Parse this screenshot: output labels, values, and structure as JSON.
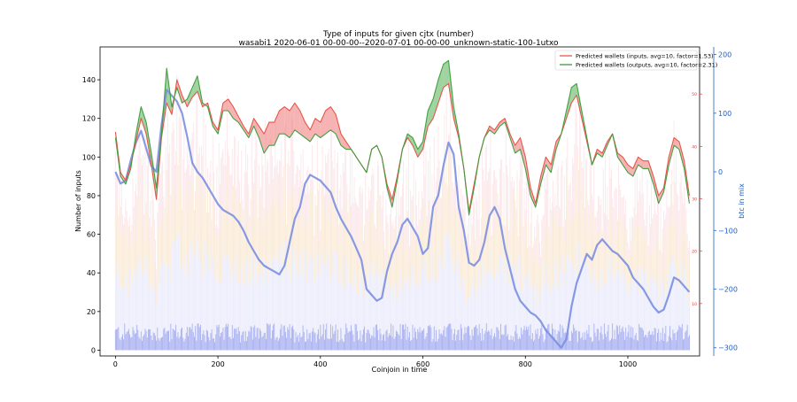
{
  "chart_data": {
    "type": "line",
    "title": "Type of inputs for given cjtx (number)",
    "subtitle": "wasabi1 2020-06-01 00-00-00--2020-07-01 00-00-00_unknown-static-100-1utxo",
    "xlabel": "Coinjoin in time",
    "ylabel": "Number of inputs",
    "y2label": "btc in mix",
    "xlim": [
      -30,
      1140
    ],
    "ylim": [
      -3,
      157
    ],
    "y2lim": [
      -314,
      213
    ],
    "y3lim": [
      0,
      59
    ],
    "x_ticks": [
      0,
      200,
      400,
      600,
      800,
      1000
    ],
    "y_ticks": [
      0,
      20,
      40,
      60,
      80,
      100,
      120,
      140
    ],
    "y2_ticks": [
      -300,
      -200,
      -100,
      0,
      100,
      200
    ],
    "y3_ticks": [
      10,
      20,
      30,
      40,
      50
    ],
    "legend_position": "top-right",
    "grid": false,
    "colors": {
      "inputs": "#e8564a",
      "outputs": "#3c9c3c",
      "btc": "#7b8fe0",
      "fill_outputs": "#5fb55f",
      "fill_inputs": "#f08080",
      "axis_right": "#1f5fbf",
      "axis_red": "#d94040",
      "bars_blue": "#6f7be8",
      "bars_orange": "#f2c48a",
      "bars_pink": "#f0a0b0",
      "bars_lavender": "#d8dcf8"
    },
    "series": [
      {
        "name": "Predicted wallets (inputs, avg=10, factor=1.53)",
        "axis": "left",
        "x": [
          0,
          10,
          20,
          30,
          40,
          50,
          60,
          70,
          80,
          90,
          100,
          110,
          120,
          130,
          140,
          150,
          160,
          170,
          180,
          190,
          200,
          210,
          220,
          230,
          240,
          250,
          260,
          270,
          280,
          290,
          300,
          310,
          320,
          330,
          340,
          350,
          360,
          370,
          380,
          390,
          400,
          410,
          420,
          430,
          440,
          450,
          460,
          470,
          480,
          490,
          500,
          510,
          520,
          530,
          540,
          550,
          560,
          570,
          580,
          590,
          600,
          610,
          620,
          630,
          640,
          650,
          660,
          670,
          680,
          690,
          700,
          710,
          720,
          730,
          740,
          750,
          760,
          770,
          780,
          790,
          800,
          810,
          820,
          830,
          840,
          850,
          860,
          870,
          880,
          890,
          900,
          910,
          920,
          930,
          940,
          950,
          960,
          970,
          980,
          990,
          1000,
          1010,
          1020,
          1030,
          1040,
          1050,
          1060,
          1070,
          1080,
          1090,
          1100,
          1110,
          1120
        ],
        "values": [
          113,
          92,
          88,
          96,
          108,
          120,
          112,
          96,
          78,
          110,
          128,
          122,
          140,
          132,
          126,
          131,
          134,
          126,
          128,
          118,
          114,
          128,
          130,
          126,
          121,
          116,
          112,
          120,
          116,
          112,
          118,
          118,
          124,
          126,
          124,
          128,
          124,
          118,
          114,
          120,
          118,
          124,
          126,
          122,
          112,
          108,
          104,
          100,
          96,
          92,
          104,
          106,
          100,
          86,
          78,
          90,
          104,
          110,
          106,
          100,
          104,
          116,
          120,
          128,
          136,
          138,
          120,
          110,
          94,
          72,
          86,
          100,
          110,
          116,
          114,
          118,
          120,
          112,
          106,
          110,
          100,
          84,
          76,
          90,
          100,
          96,
          108,
          112,
          120,
          128,
          132,
          120,
          108,
          96,
          104,
          102,
          108,
          112,
          102,
          100,
          96,
          94,
          100,
          98,
          98,
          90,
          80,
          84,
          100,
          110,
          108,
          98,
          80
        ]
      },
      {
        "name": "Predicted wallets (outputs, avg=10, factor=2.31)",
        "axis": "left",
        "x": [
          0,
          10,
          20,
          30,
          40,
          50,
          60,
          70,
          80,
          90,
          100,
          110,
          120,
          130,
          140,
          150,
          160,
          170,
          180,
          190,
          200,
          210,
          220,
          230,
          240,
          250,
          260,
          270,
          280,
          290,
          300,
          310,
          320,
          330,
          340,
          350,
          360,
          370,
          380,
          390,
          400,
          410,
          420,
          430,
          440,
          450,
          460,
          470,
          480,
          490,
          500,
          510,
          520,
          530,
          540,
          550,
          560,
          570,
          580,
          590,
          600,
          610,
          620,
          630,
          640,
          650,
          660,
          670,
          680,
          690,
          700,
          710,
          720,
          730,
          740,
          750,
          760,
          770,
          780,
          790,
          800,
          810,
          820,
          830,
          840,
          850,
          860,
          870,
          880,
          890,
          900,
          910,
          920,
          930,
          940,
          950,
          960,
          970,
          980,
          990,
          1000,
          1010,
          1020,
          1030,
          1040,
          1050,
          1060,
          1070,
          1080,
          1090,
          1100,
          1110,
          1120
        ],
        "values": [
          110,
          90,
          86,
          94,
          112,
          126,
          118,
          102,
          84,
          112,
          146,
          126,
          136,
          128,
          130,
          136,
          142,
          128,
          126,
          116,
          112,
          124,
          124,
          120,
          118,
          114,
          110,
          116,
          110,
          102,
          106,
          106,
          112,
          112,
          110,
          114,
          112,
          110,
          108,
          112,
          110,
          112,
          114,
          112,
          106,
          104,
          104,
          100,
          96,
          92,
          104,
          106,
          100,
          84,
          74,
          88,
          104,
          112,
          110,
          104,
          108,
          124,
          130,
          140,
          148,
          150,
          126,
          112,
          94,
          70,
          84,
          100,
          110,
          114,
          112,
          116,
          118,
          110,
          102,
          104,
          94,
          80,
          74,
          86,
          96,
          92,
          104,
          112,
          124,
          136,
          138,
          124,
          110,
          96,
          102,
          100,
          106,
          112,
          100,
          96,
          92,
          90,
          96,
          94,
          94,
          86,
          76,
          82,
          96,
          106,
          104,
          94,
          76
        ]
      },
      {
        "name": "",
        "axis": "right",
        "x": [
          0,
          10,
          20,
          30,
          40,
          50,
          60,
          70,
          80,
          90,
          100,
          110,
          120,
          130,
          140,
          150,
          160,
          170,
          180,
          190,
          200,
          210,
          220,
          230,
          240,
          250,
          260,
          270,
          280,
          290,
          300,
          310,
          320,
          330,
          340,
          350,
          360,
          370,
          380,
          390,
          400,
          410,
          420,
          430,
          440,
          450,
          460,
          470,
          480,
          490,
          500,
          510,
          520,
          530,
          540,
          550,
          560,
          570,
          580,
          590,
          600,
          610,
          620,
          630,
          640,
          650,
          660,
          670,
          680,
          690,
          700,
          710,
          720,
          730,
          740,
          750,
          760,
          770,
          780,
          790,
          800,
          810,
          820,
          830,
          840,
          850,
          860,
          870,
          880,
          890,
          900,
          910,
          920,
          930,
          940,
          950,
          960,
          970,
          980,
          990,
          1000,
          1010,
          1020,
          1030,
          1040,
          1050,
          1060,
          1070,
          1080,
          1090,
          1100,
          1110,
          1120
        ],
        "values": [
          0,
          -20,
          -15,
          20,
          50,
          70,
          40,
          10,
          0,
          80,
          140,
          130,
          120,
          100,
          60,
          15,
          0,
          -10,
          -25,
          -40,
          -55,
          -65,
          -70,
          -75,
          -85,
          -100,
          -120,
          -135,
          -150,
          -160,
          -165,
          -170,
          -175,
          -160,
          -120,
          -80,
          -60,
          -20,
          -5,
          -10,
          -15,
          -25,
          -35,
          -60,
          -80,
          -95,
          -110,
          -130,
          -150,
          -200,
          -210,
          -220,
          -215,
          -170,
          -140,
          -120,
          -90,
          -80,
          -95,
          -110,
          -140,
          -130,
          -60,
          -40,
          10,
          50,
          30,
          -60,
          -100,
          -155,
          -160,
          -150,
          -120,
          -75,
          -60,
          -80,
          -130,
          -165,
          -200,
          -220,
          -230,
          -240,
          -245,
          -255,
          -270,
          -280,
          -290,
          -300,
          -285,
          -230,
          -190,
          -165,
          -140,
          -150,
          -125,
          -115,
          -125,
          -135,
          -140,
          -150,
          -160,
          -180,
          -190,
          -200,
          -215,
          -230,
          -240,
          -235,
          -210,
          -180,
          -185,
          -195,
          -205
        ]
      }
    ]
  }
}
